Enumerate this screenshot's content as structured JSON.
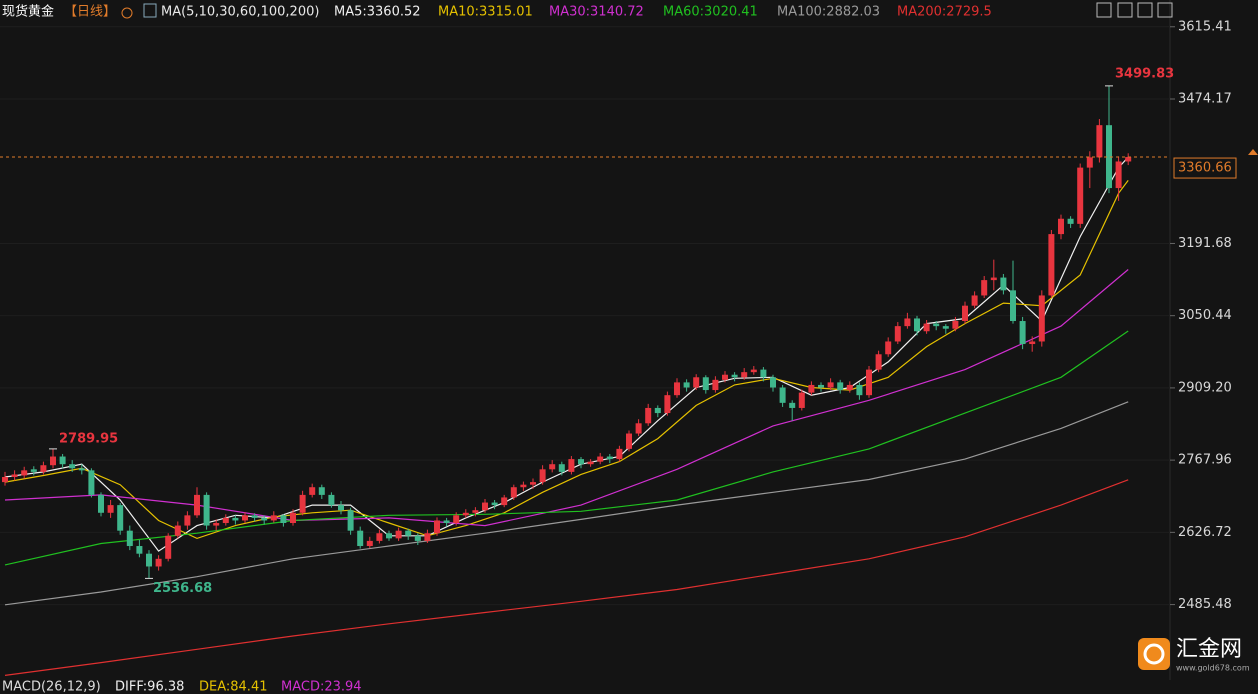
{
  "chart_data": {
    "type": "candlestick",
    "title": "现货黄金",
    "period": "【日线】",
    "ma_title": "MA(5,10,30,60,100,200)",
    "up_color": "#e8353f",
    "down_color": "#3fb68c",
    "grid": true,
    "ylim": [
      2338,
      3658
    ],
    "yticks": [
      3615.41,
      3474.17,
      3191.68,
      3050.44,
      {
        "value": 2909.2,
        "label": "2909.20"
      },
      2767.96,
      2626.72,
      2485.48
    ],
    "annotations": {
      "high": 115,
      "peak_left": 5,
      "low": 15
    },
    "ohlc": [
      [
        2725,
        2745,
        2718,
        2735
      ],
      [
        2735,
        2748,
        2728,
        2740
      ],
      [
        2738,
        2755,
        2732,
        2748
      ],
      [
        2750,
        2756,
        2738,
        2745
      ],
      [
        2745,
        2765,
        2740,
        2758
      ],
      [
        2758,
        2789.95,
        2752,
        2775
      ],
      [
        2775,
        2780,
        2752,
        2760
      ],
      [
        2760,
        2768,
        2745,
        2752
      ],
      [
        2752,
        2760,
        2740,
        2748
      ],
      [
        2748,
        2752,
        2695,
        2700
      ],
      [
        2700,
        2705,
        2658,
        2665
      ],
      [
        2665,
        2690,
        2655,
        2680
      ],
      [
        2680,
        2684,
        2622,
        2630
      ],
      [
        2630,
        2640,
        2592,
        2600
      ],
      [
        2600,
        2612,
        2578,
        2585
      ],
      [
        2585,
        2592,
        2536.68,
        2560
      ],
      [
        2560,
        2582,
        2552,
        2575
      ],
      [
        2575,
        2625,
        2570,
        2620
      ],
      [
        2620,
        2648,
        2615,
        2640
      ],
      [
        2640,
        2668,
        2632,
        2660
      ],
      [
        2660,
        2715,
        2655,
        2700
      ],
      [
        2700,
        2705,
        2632,
        2640
      ],
      [
        2640,
        2652,
        2630,
        2645
      ],
      [
        2645,
        2662,
        2640,
        2655
      ],
      [
        2655,
        2660,
        2642,
        2650
      ],
      [
        2650,
        2666,
        2645,
        2660
      ],
      [
        2660,
        2664,
        2648,
        2655
      ],
      [
        2655,
        2660,
        2642,
        2650
      ],
      [
        2650,
        2668,
        2646,
        2660
      ],
      [
        2660,
        2662,
        2638,
        2645
      ],
      [
        2645,
        2672,
        2640,
        2665
      ],
      [
        2665,
        2708,
        2660,
        2700
      ],
      [
        2700,
        2722,
        2695,
        2715
      ],
      [
        2715,
        2720,
        2692,
        2700
      ],
      [
        2700,
        2705,
        2675,
        2680
      ],
      [
        2680,
        2688,
        2662,
        2670
      ],
      [
        2670,
        2675,
        2622,
        2630
      ],
      [
        2630,
        2638,
        2595,
        2600
      ],
      [
        2600,
        2618,
        2596,
        2610
      ],
      [
        2610,
        2632,
        2605,
        2625
      ],
      [
        2625,
        2630,
        2610,
        2615
      ],
      [
        2615,
        2636,
        2610,
        2630
      ],
      [
        2630,
        2634,
        2612,
        2620
      ],
      [
        2620,
        2625,
        2602,
        2610
      ],
      [
        2610,
        2632,
        2606,
        2625
      ],
      [
        2625,
        2656,
        2620,
        2650
      ],
      [
        2650,
        2655,
        2638,
        2645
      ],
      [
        2645,
        2666,
        2640,
        2660
      ],
      [
        2660,
        2672,
        2655,
        2665
      ],
      [
        2665,
        2676,
        2658,
        2670
      ],
      [
        2670,
        2692,
        2665,
        2685
      ],
      [
        2685,
        2690,
        2672,
        2680
      ],
      [
        2680,
        2700,
        2676,
        2695
      ],
      [
        2695,
        2720,
        2690,
        2715
      ],
      [
        2715,
        2726,
        2708,
        2720
      ],
      [
        2720,
        2732,
        2712,
        2725
      ],
      [
        2725,
        2758,
        2720,
        2750
      ],
      [
        2750,
        2768,
        2744,
        2760
      ],
      [
        2760,
        2765,
        2738,
        2745
      ],
      [
        2745,
        2776,
        2740,
        2770
      ],
      [
        2770,
        2774,
        2752,
        2760
      ],
      [
        2760,
        2770,
        2755,
        2765
      ],
      [
        2765,
        2782,
        2760,
        2775
      ],
      [
        2775,
        2780,
        2762,
        2770
      ],
      [
        2770,
        2796,
        2765,
        2790
      ],
      [
        2790,
        2826,
        2785,
        2820
      ],
      [
        2820,
        2848,
        2815,
        2840
      ],
      [
        2840,
        2878,
        2835,
        2870
      ],
      [
        2870,
        2875,
        2852,
        2860
      ],
      [
        2860,
        2902,
        2855,
        2895
      ],
      [
        2895,
        2928,
        2890,
        2920
      ],
      [
        2920,
        2926,
        2902,
        2910
      ],
      [
        2910,
        2936,
        2905,
        2930
      ],
      [
        2930,
        2934,
        2898,
        2905
      ],
      [
        2905,
        2932,
        2900,
        2925
      ],
      [
        2925,
        2942,
        2920,
        2935
      ],
      [
        2935,
        2940,
        2922,
        2930
      ],
      [
        2930,
        2948,
        2925,
        2940
      ],
      [
        2940,
        2952,
        2935,
        2945
      ],
      [
        2945,
        2950,
        2922,
        2930
      ],
      [
        2930,
        2935,
        2902,
        2910
      ],
      [
        2910,
        2915,
        2872,
        2880
      ],
      [
        2880,
        2885,
        2845,
        2870
      ],
      [
        2870,
        2906,
        2865,
        2900
      ],
      [
        2900,
        2922,
        2895,
        2915
      ],
      [
        2915,
        2920,
        2902,
        2910
      ],
      [
        2910,
        2928,
        2905,
        2920
      ],
      [
        2920,
        2925,
        2898,
        2905
      ],
      [
        2905,
        2922,
        2900,
        2915
      ],
      [
        2915,
        2920,
        2886,
        2895
      ],
      [
        2895,
        2952,
        2890,
        2945
      ],
      [
        2945,
        2982,
        2940,
        2975
      ],
      [
        2975,
        3008,
        2970,
        3000
      ],
      [
        3000,
        3038,
        2995,
        3030
      ],
      [
        3030,
        3056,
        3025,
        3045
      ],
      [
        3045,
        3050,
        3012,
        3020
      ],
      [
        3020,
        3042,
        3015,
        3035
      ],
      [
        3035,
        3040,
        3022,
        3030
      ],
      [
        3030,
        3034,
        3015,
        3025
      ],
      [
        3025,
        3048,
        3020,
        3040
      ],
      [
        3040,
        3078,
        3035,
        3070
      ],
      [
        3070,
        3098,
        3065,
        3090
      ],
      [
        3090,
        3128,
        3085,
        3120
      ],
      [
        3120,
        3160,
        3100,
        3125
      ],
      [
        3125,
        3132,
        3092,
        3100
      ],
      [
        3100,
        3158,
        3035,
        3040
      ],
      [
        3040,
        3048,
        2985,
        2995
      ],
      [
        2995,
        3010,
        2980,
        3000
      ],
      [
        3000,
        3100,
        2990,
        3090
      ],
      [
        3090,
        3218,
        3085,
        3210
      ],
      [
        3210,
        3248,
        3200,
        3240
      ],
      [
        3240,
        3245,
        3222,
        3230
      ],
      [
        3230,
        3348,
        3222,
        3340
      ],
      [
        3340,
        3372,
        3300,
        3360
      ],
      [
        3360,
        3435,
        3350,
        3423
      ],
      [
        3423,
        3499.83,
        3290,
        3300
      ],
      [
        3300,
        3362,
        3275,
        3352
      ],
      [
        3352,
        3368,
        3345,
        3360.66
      ]
    ],
    "series": [
      {
        "name": "MA5:3360.52",
        "color": "#f0f0f0",
        "x": [
          0,
          4,
          8,
          12,
          16,
          20,
          24,
          28,
          32,
          36,
          40,
          44,
          48,
          52,
          56,
          60,
          64,
          68,
          72,
          76,
          80,
          84,
          88,
          92,
          96,
          100,
          104,
          108,
          112,
          116,
          117
        ],
        "values": [
          2735,
          2745,
          2760,
          2690,
          2590,
          2640,
          2660,
          2655,
          2680,
          2680,
          2620,
          2620,
          2655,
          2685,
          2725,
          2760,
          2775,
          2845,
          2910,
          2928,
          2930,
          2895,
          2910,
          2960,
          3035,
          3045,
          3110,
          3040,
          3205,
          3340,
          3360.52
        ]
      },
      {
        "name": "MA10:3315.01",
        "color": "#e5c100",
        "x": [
          0,
          4,
          8,
          12,
          16,
          20,
          24,
          28,
          32,
          36,
          40,
          44,
          48,
          52,
          56,
          60,
          64,
          68,
          72,
          76,
          80,
          84,
          88,
          92,
          96,
          100,
          104,
          108,
          112,
          116,
          117
        ],
        "values": [
          2725,
          2738,
          2752,
          2720,
          2650,
          2615,
          2640,
          2657,
          2665,
          2670,
          2645,
          2620,
          2640,
          2665,
          2705,
          2740,
          2765,
          2810,
          2875,
          2915,
          2928,
          2910,
          2905,
          2930,
          2990,
          3035,
          3075,
          3070,
          3130,
          3290,
          3315.01
        ]
      },
      {
        "name": "MA30:3140.72",
        "color": "#d030d0",
        "x": [
          0,
          10,
          20,
          30,
          40,
          50,
          60,
          70,
          80,
          90,
          100,
          110,
          117
        ],
        "values": [
          2690,
          2700,
          2680,
          2650,
          2655,
          2640,
          2680,
          2750,
          2835,
          2885,
          2945,
          3030,
          3140.72
        ]
      },
      {
        "name": "MA60:3020.41",
        "color": "#20c020",
        "x": [
          0,
          10,
          20,
          30,
          40,
          50,
          60,
          70,
          80,
          90,
          100,
          110,
          117
        ],
        "values": [
          2563,
          2605,
          2625,
          2650,
          2660,
          2662,
          2668,
          2690,
          2745,
          2790,
          2860,
          2930,
          3020.41
        ]
      },
      {
        "name": "MA100:2882.03",
        "color": "#9a9a9a",
        "x": [
          0,
          10,
          20,
          30,
          40,
          50,
          60,
          70,
          80,
          90,
          100,
          110,
          117
        ],
        "values": [
          2485,
          2510,
          2540,
          2575,
          2600,
          2625,
          2652,
          2680,
          2705,
          2730,
          2770,
          2830,
          2882.03
        ]
      },
      {
        "name": "MA200:2729.5",
        "color": "#e03030",
        "x": [
          0,
          10,
          20,
          30,
          40,
          50,
          60,
          70,
          80,
          90,
          100,
          110,
          117
        ],
        "values": [
          2347,
          2372,
          2398,
          2424,
          2448,
          2470,
          2492,
          2515,
          2545,
          2575,
          2618,
          2680,
          2729.5
        ]
      }
    ],
    "macd": {
      "title": "MACD(26,12,9)",
      "diff": "DIFF:96.38",
      "dea": "DEA:84.41",
      "macd": "MACD:23.94"
    },
    "watermark": {
      "name": "汇金网",
      "url": "www.gold678.com"
    }
  }
}
